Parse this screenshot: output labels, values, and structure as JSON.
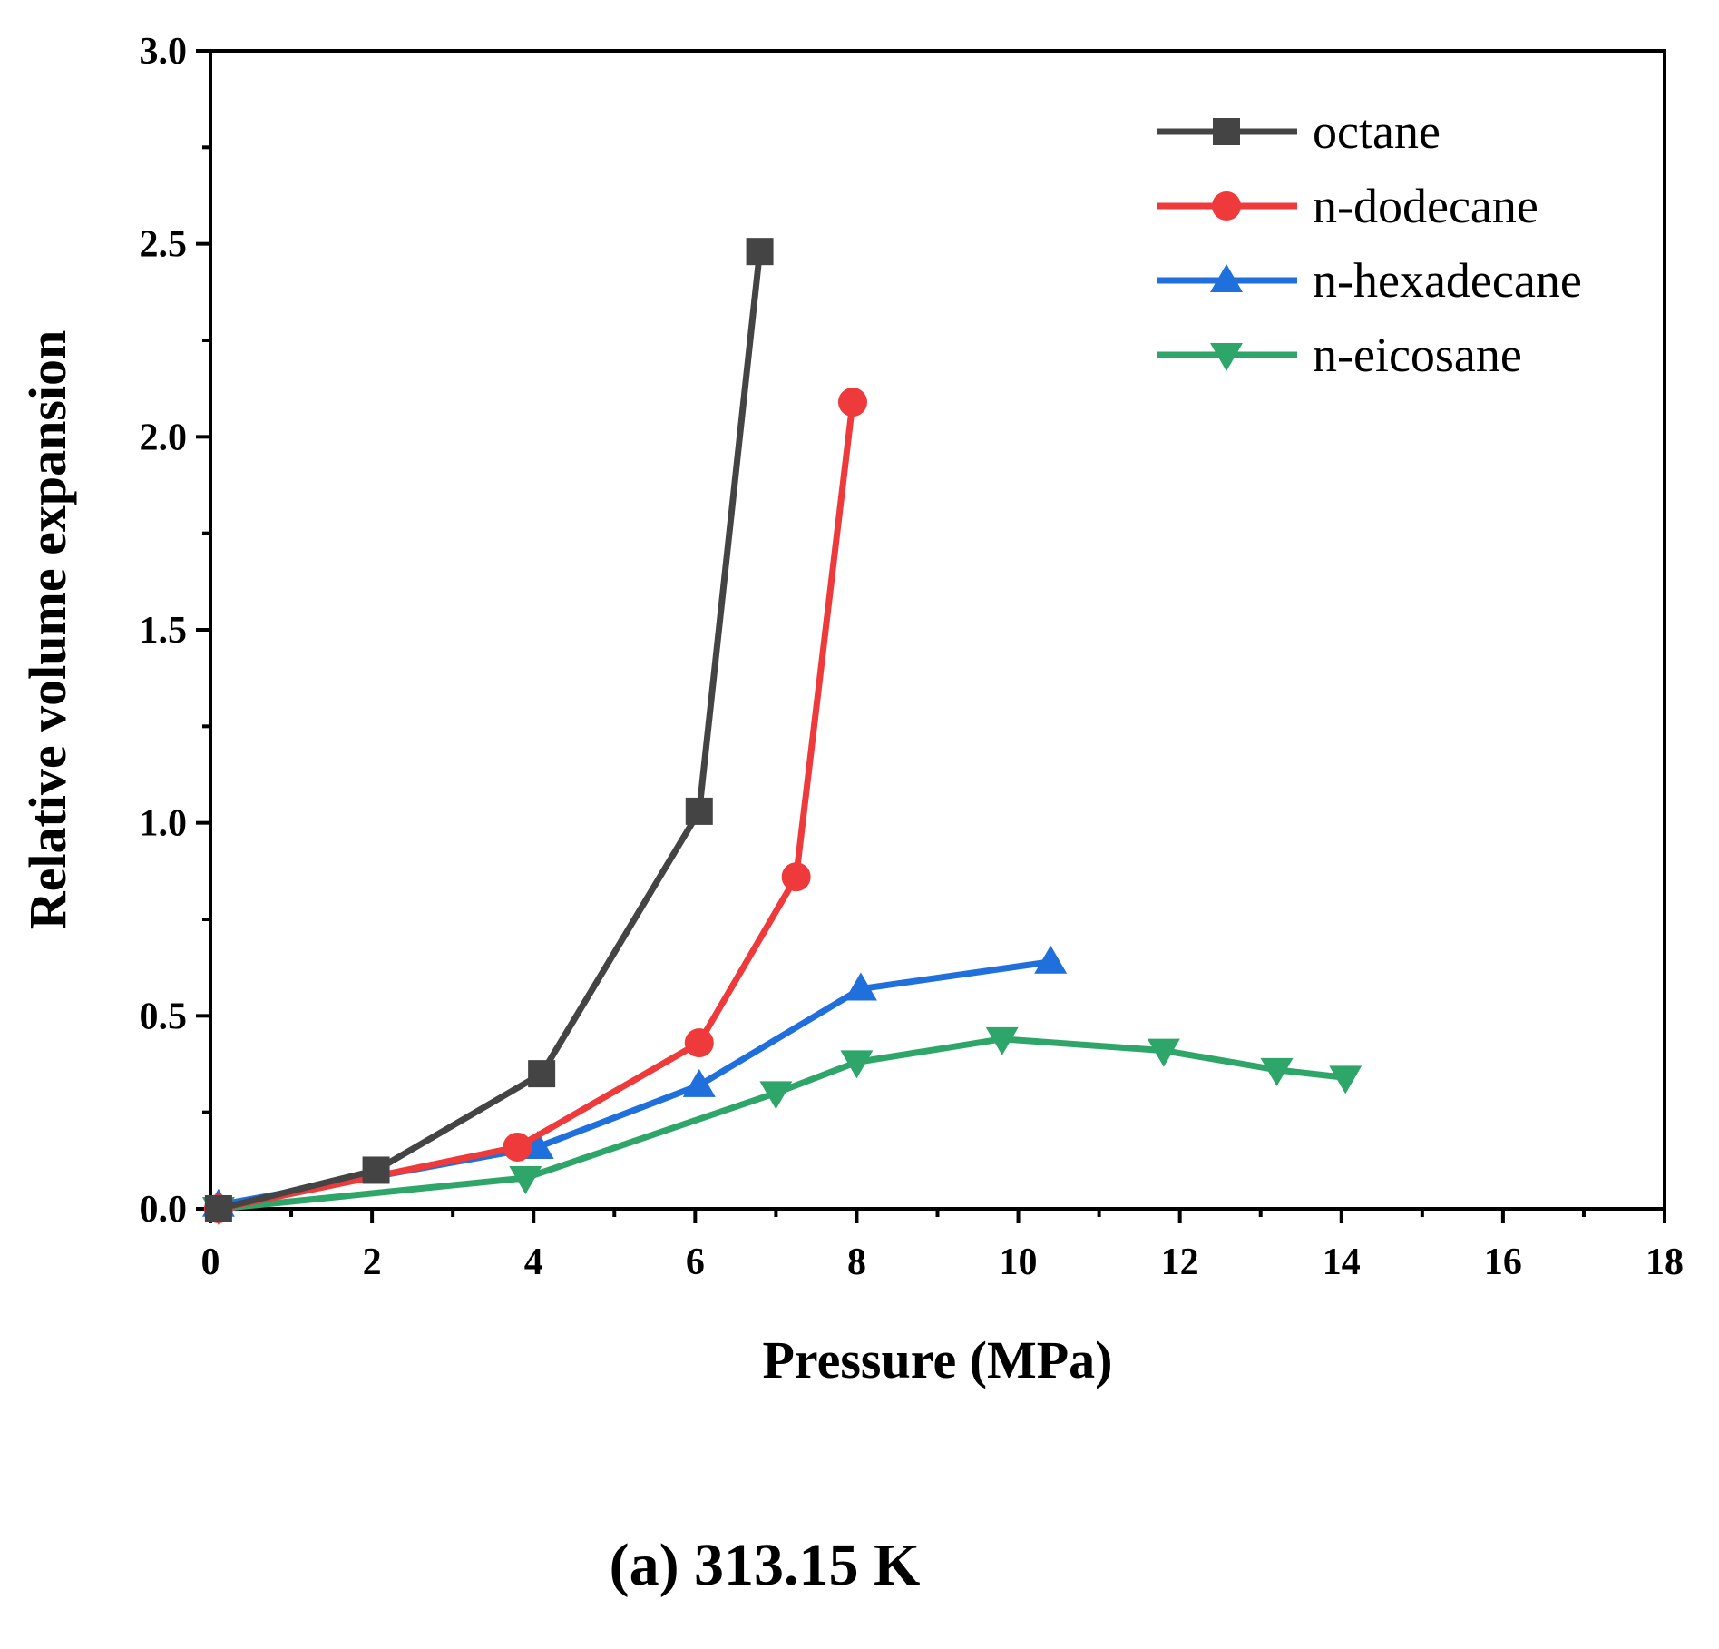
{
  "chart_data": {
    "type": "line",
    "xlabel": "Pressure (MPa)",
    "ylabel": "Relative volume expansion",
    "xlim": [
      0,
      18
    ],
    "ylim": [
      0,
      3.0
    ],
    "xticks": [
      0,
      2,
      4,
      6,
      8,
      10,
      12,
      14,
      16,
      18
    ],
    "xtick_labels": [
      "0",
      "2",
      "4",
      "6",
      "8",
      "10",
      "12",
      "14",
      "16",
      "18"
    ],
    "yticks": [
      0,
      0.5,
      1.0,
      1.5,
      2.0,
      2.5,
      3.0
    ],
    "ytick_labels": [
      "0.0",
      "0.5",
      "1.0",
      "1.5",
      "2.0",
      "2.5",
      "3.0"
    ],
    "grid": false,
    "legend_position": "top-right",
    "series": [
      {
        "name": "octane",
        "color": "#444444",
        "marker": "square",
        "x": [
          0.1,
          2.05,
          4.1,
          6.05,
          6.8
        ],
        "y": [
          0.0,
          0.1,
          0.35,
          1.03,
          2.48
        ]
      },
      {
        "name": "n-dodecane",
        "color": "#ee3a3a",
        "marker": "circle",
        "x": [
          0.1,
          3.8,
          6.05,
          7.25,
          7.95
        ],
        "y": [
          0.0,
          0.16,
          0.43,
          0.86,
          2.09
        ]
      },
      {
        "name": "n-hexadecane",
        "color": "#1f6fdc",
        "marker": "triangle-up",
        "x": [
          0.1,
          4.05,
          6.05,
          8.05,
          10.4
        ],
        "y": [
          0.01,
          0.16,
          0.32,
          0.57,
          0.64
        ]
      },
      {
        "name": "n-eicosane",
        "color": "#2ea66a",
        "marker": "triangle-down",
        "x": [
          0.1,
          3.9,
          7.0,
          8.0,
          9.8,
          11.8,
          13.2,
          14.05
        ],
        "y": [
          0.0,
          0.08,
          0.3,
          0.38,
          0.44,
          0.41,
          0.36,
          0.34
        ]
      }
    ]
  },
  "caption": "(a) 313.15 K"
}
